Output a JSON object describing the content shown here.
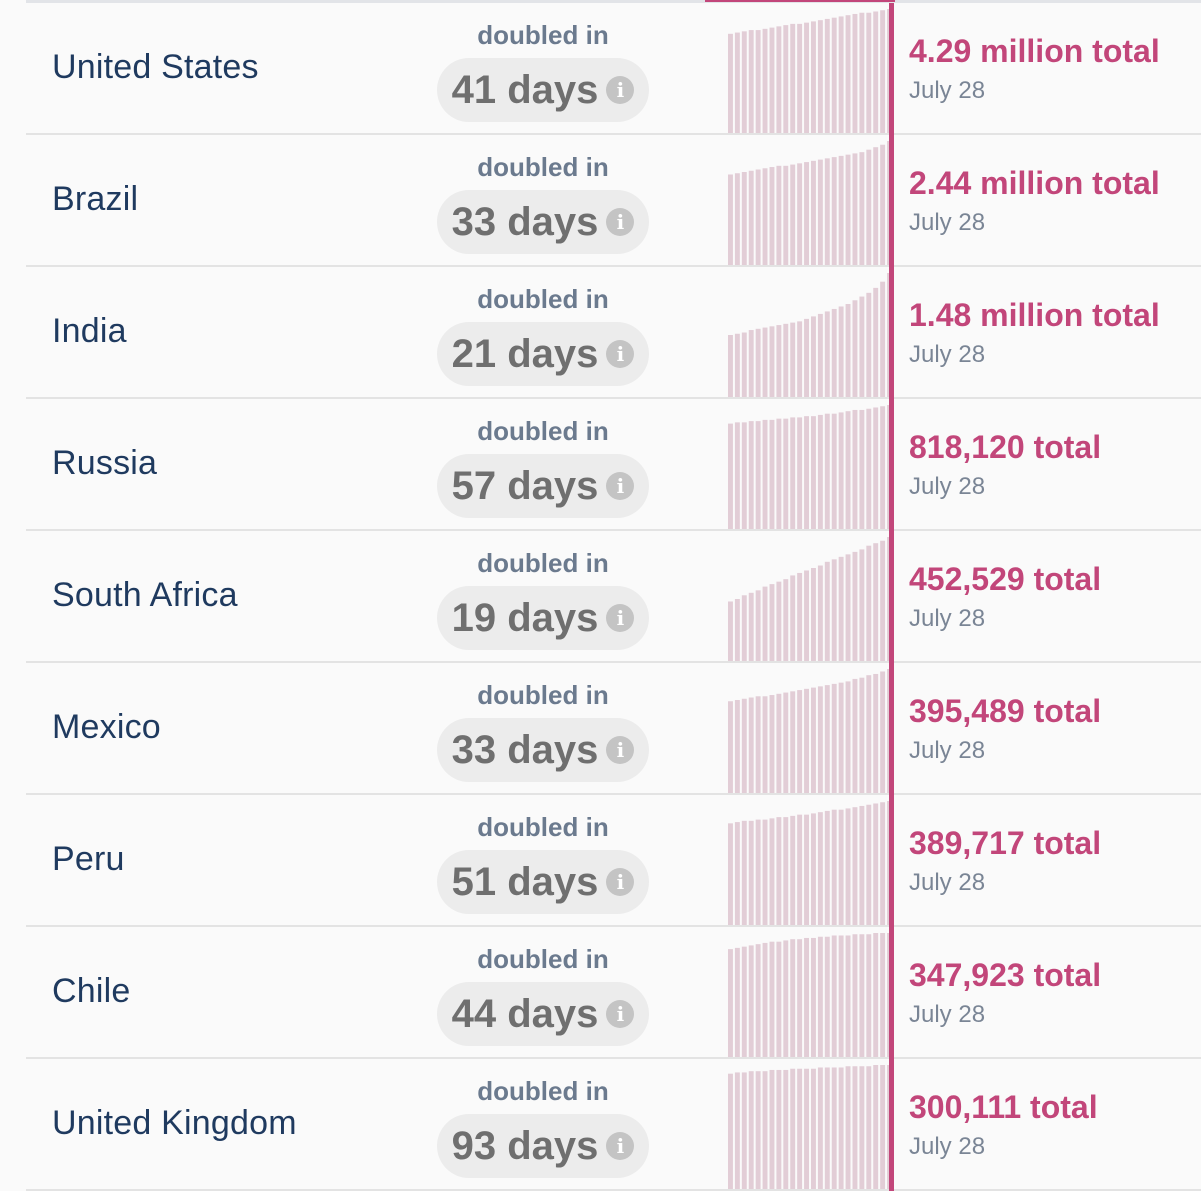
{
  "label_doubled": "doubled in",
  "info_glyph": "i",
  "colors": {
    "accent": "#c2467a",
    "bar_fill": "#e2cdd6",
    "country_text": "#1f3a5f",
    "muted_text": "#6b7a8e",
    "pill_bg": "#ececec"
  },
  "chart_data": {
    "type": "table",
    "columns": [
      "country",
      "doubling_time",
      "cumulative_cases",
      "date"
    ],
    "rows": [
      {
        "country": "United States",
        "doubled": "41 days",
        "total": "4.29 million total",
        "date": "July 28",
        "trend": [
          0.8,
          0.81,
          0.82,
          0.83,
          0.83,
          0.84,
          0.85,
          0.86,
          0.87,
          0.88,
          0.88,
          0.89,
          0.9,
          0.91,
          0.92,
          0.93,
          0.94,
          0.95,
          0.96,
          0.97,
          0.97,
          0.98,
          0.99,
          1.0
        ]
      },
      {
        "country": "Brazil",
        "doubled": "33 days",
        "total": "2.44 million total",
        "date": "July 28",
        "trend": [
          0.73,
          0.74,
          0.75,
          0.76,
          0.77,
          0.78,
          0.79,
          0.8,
          0.8,
          0.81,
          0.82,
          0.83,
          0.84,
          0.85,
          0.86,
          0.87,
          0.88,
          0.89,
          0.9,
          0.91,
          0.93,
          0.95,
          0.97,
          1.0
        ]
      },
      {
        "country": "India",
        "doubled": "21 days",
        "total": "1.48 million total",
        "date": "July 28",
        "trend": [
          0.5,
          0.51,
          0.52,
          0.54,
          0.55,
          0.56,
          0.57,
          0.58,
          0.59,
          0.6,
          0.61,
          0.63,
          0.65,
          0.67,
          0.69,
          0.71,
          0.73,
          0.75,
          0.78,
          0.81,
          0.84,
          0.88,
          0.93,
          1.0
        ]
      },
      {
        "country": "Russia",
        "doubled": "57 days",
        "total": "818,120 total",
        "date": "July 28",
        "trend": [
          0.85,
          0.86,
          0.86,
          0.87,
          0.87,
          0.88,
          0.88,
          0.89,
          0.89,
          0.9,
          0.9,
          0.91,
          0.91,
          0.92,
          0.93,
          0.93,
          0.94,
          0.95,
          0.96,
          0.96,
          0.97,
          0.98,
          0.99,
          1.0
        ]
      },
      {
        "country": "South Africa",
        "doubled": "19 days",
        "total": "452,529 total",
        "date": "July 28",
        "trend": [
          0.48,
          0.5,
          0.53,
          0.55,
          0.57,
          0.6,
          0.62,
          0.64,
          0.66,
          0.69,
          0.71,
          0.73,
          0.75,
          0.77,
          0.8,
          0.82,
          0.84,
          0.86,
          0.88,
          0.9,
          0.93,
          0.95,
          0.97,
          1.0
        ]
      },
      {
        "country": "Mexico",
        "doubled": "33 days",
        "total": "395,489 total",
        "date": "July 28",
        "trend": [
          0.74,
          0.75,
          0.76,
          0.77,
          0.78,
          0.78,
          0.79,
          0.8,
          0.81,
          0.82,
          0.83,
          0.84,
          0.85,
          0.86,
          0.87,
          0.88,
          0.89,
          0.9,
          0.92,
          0.93,
          0.95,
          0.96,
          0.98,
          1.0
        ]
      },
      {
        "country": "Peru",
        "doubled": "51 days",
        "total": "389,717 total",
        "date": "July 28",
        "trend": [
          0.82,
          0.83,
          0.84,
          0.84,
          0.85,
          0.85,
          0.86,
          0.87,
          0.87,
          0.88,
          0.89,
          0.89,
          0.9,
          0.91,
          0.92,
          0.93,
          0.93,
          0.94,
          0.95,
          0.96,
          0.97,
          0.98,
          0.99,
          1.0
        ]
      },
      {
        "country": "Chile",
        "doubled": "44 days",
        "total": "347,923 total",
        "date": "July 28",
        "trend": [
          0.87,
          0.88,
          0.89,
          0.9,
          0.91,
          0.92,
          0.93,
          0.93,
          0.94,
          0.95,
          0.95,
          0.96,
          0.96,
          0.97,
          0.97,
          0.98,
          0.98,
          0.98,
          0.99,
          0.99,
          0.99,
          1.0,
          1.0,
          1.0
        ]
      },
      {
        "country": "United Kingdom",
        "doubled": "93 days",
        "total": "300,111 total",
        "date": "July 28",
        "trend": [
          0.93,
          0.94,
          0.94,
          0.95,
          0.95,
          0.95,
          0.96,
          0.96,
          0.96,
          0.97,
          0.97,
          0.97,
          0.97,
          0.98,
          0.98,
          0.98,
          0.98,
          0.99,
          0.99,
          0.99,
          0.99,
          1.0,
          1.0,
          1.0
        ]
      }
    ]
  }
}
